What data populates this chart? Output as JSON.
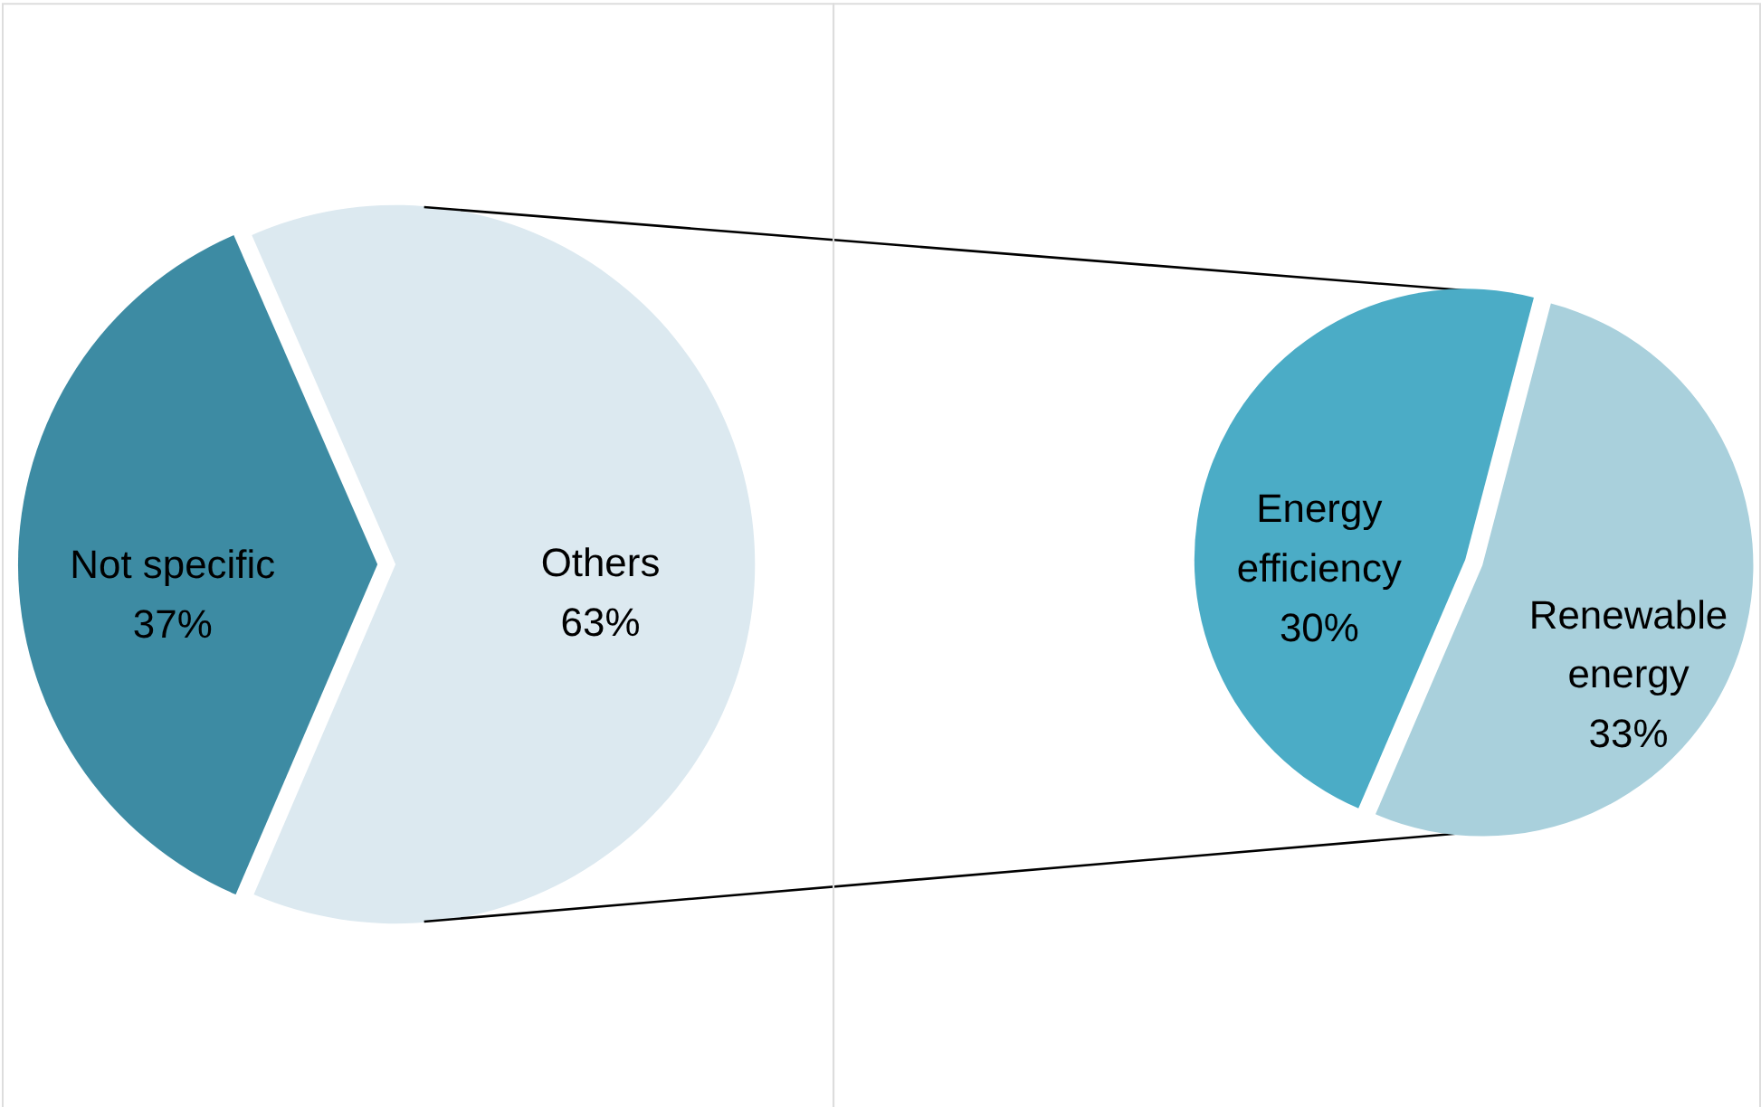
{
  "chart_data": [
    {
      "type": "pie",
      "categories": [
        "Not specific",
        "Others"
      ],
      "values": [
        37,
        63
      ],
      "colors": [
        "#3d8ba3",
        "#dce9f0"
      ],
      "value_labels": [
        "37%",
        "63%"
      ]
    },
    {
      "type": "pie",
      "categories": [
        "Energy efficiency",
        "Renewable energy"
      ],
      "values": [
        30,
        33
      ],
      "colors": [
        "#4bacc6",
        "#a9d0dc"
      ],
      "value_labels": [
        "30%",
        "33%"
      ]
    }
  ]
}
